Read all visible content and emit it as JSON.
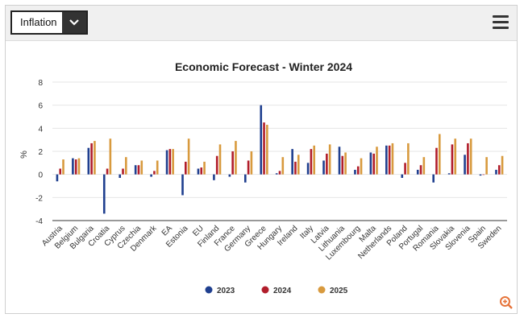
{
  "toolbar": {
    "select_value": "Inflation",
    "chevron_icon": "chevron-down-icon",
    "menu_icon": "hamburger-menu-icon",
    "zoom_icon": "zoom-in-icon"
  },
  "colors": {
    "s2023": "#1f3f8f",
    "s2024": "#b11d2b",
    "s2025": "#d89a3e",
    "zoom": "#e6743a"
  },
  "chart_data": {
    "type": "bar",
    "title": "Economic Forecast - Winter 2024",
    "ylabel": "%",
    "xlabel": "",
    "ylim": [
      -4,
      8
    ],
    "yticks": [
      -4,
      -2,
      0,
      2,
      4,
      6,
      8
    ],
    "grid": true,
    "legend_position": "bottom",
    "categories": [
      "Austria",
      "Belgium",
      "Bulgaria",
      "Croatia",
      "Cyprus",
      "Czechia",
      "Denmark",
      "EA",
      "Estonia",
      "EU",
      "Finland",
      "France",
      "Germany",
      "Greece",
      "Hungary",
      "Ireland",
      "Italy",
      "Latvia",
      "Lithuania",
      "Luxembourg",
      "Malta",
      "Netherlands",
      "Poland",
      "Portugal",
      "Romania",
      "Slovakia",
      "Slovenia",
      "Spain",
      "Sweden"
    ],
    "series": [
      {
        "name": "2023",
        "values": [
          -0.6,
          1.4,
          2.3,
          -3.4,
          -0.3,
          0.8,
          -0.2,
          2.1,
          -1.8,
          0.5,
          -0.5,
          -0.2,
          -0.7,
          6.0,
          0.1,
          2.2,
          1.0,
          1.2,
          2.4,
          0.4,
          1.9,
          2.5,
          -0.3,
          0.4,
          -0.7,
          0.1,
          1.7,
          -0.1,
          0.4
        ]
      },
      {
        "name": "2024",
        "values": [
          0.5,
          1.3,
          2.7,
          0.5,
          0.5,
          0.8,
          0.3,
          2.2,
          1.1,
          0.6,
          1.6,
          2.0,
          1.2,
          4.5,
          0.3,
          1.1,
          2.2,
          1.8,
          1.6,
          0.7,
          1.8,
          2.5,
          1.0,
          0.8,
          2.3,
          2.6,
          2.7,
          0.0,
          0.8
        ]
      },
      {
        "name": "2025",
        "values": [
          1.3,
          1.4,
          2.9,
          3.1,
          1.5,
          1.2,
          1.2,
          2.2,
          3.1,
          1.1,
          2.6,
          2.9,
          2.0,
          4.3,
          1.5,
          1.7,
          2.5,
          2.6,
          1.9,
          1.4,
          2.4,
          2.7,
          2.7,
          1.5,
          3.5,
          3.1,
          3.1,
          1.5,
          1.6
        ]
      }
    ]
  }
}
